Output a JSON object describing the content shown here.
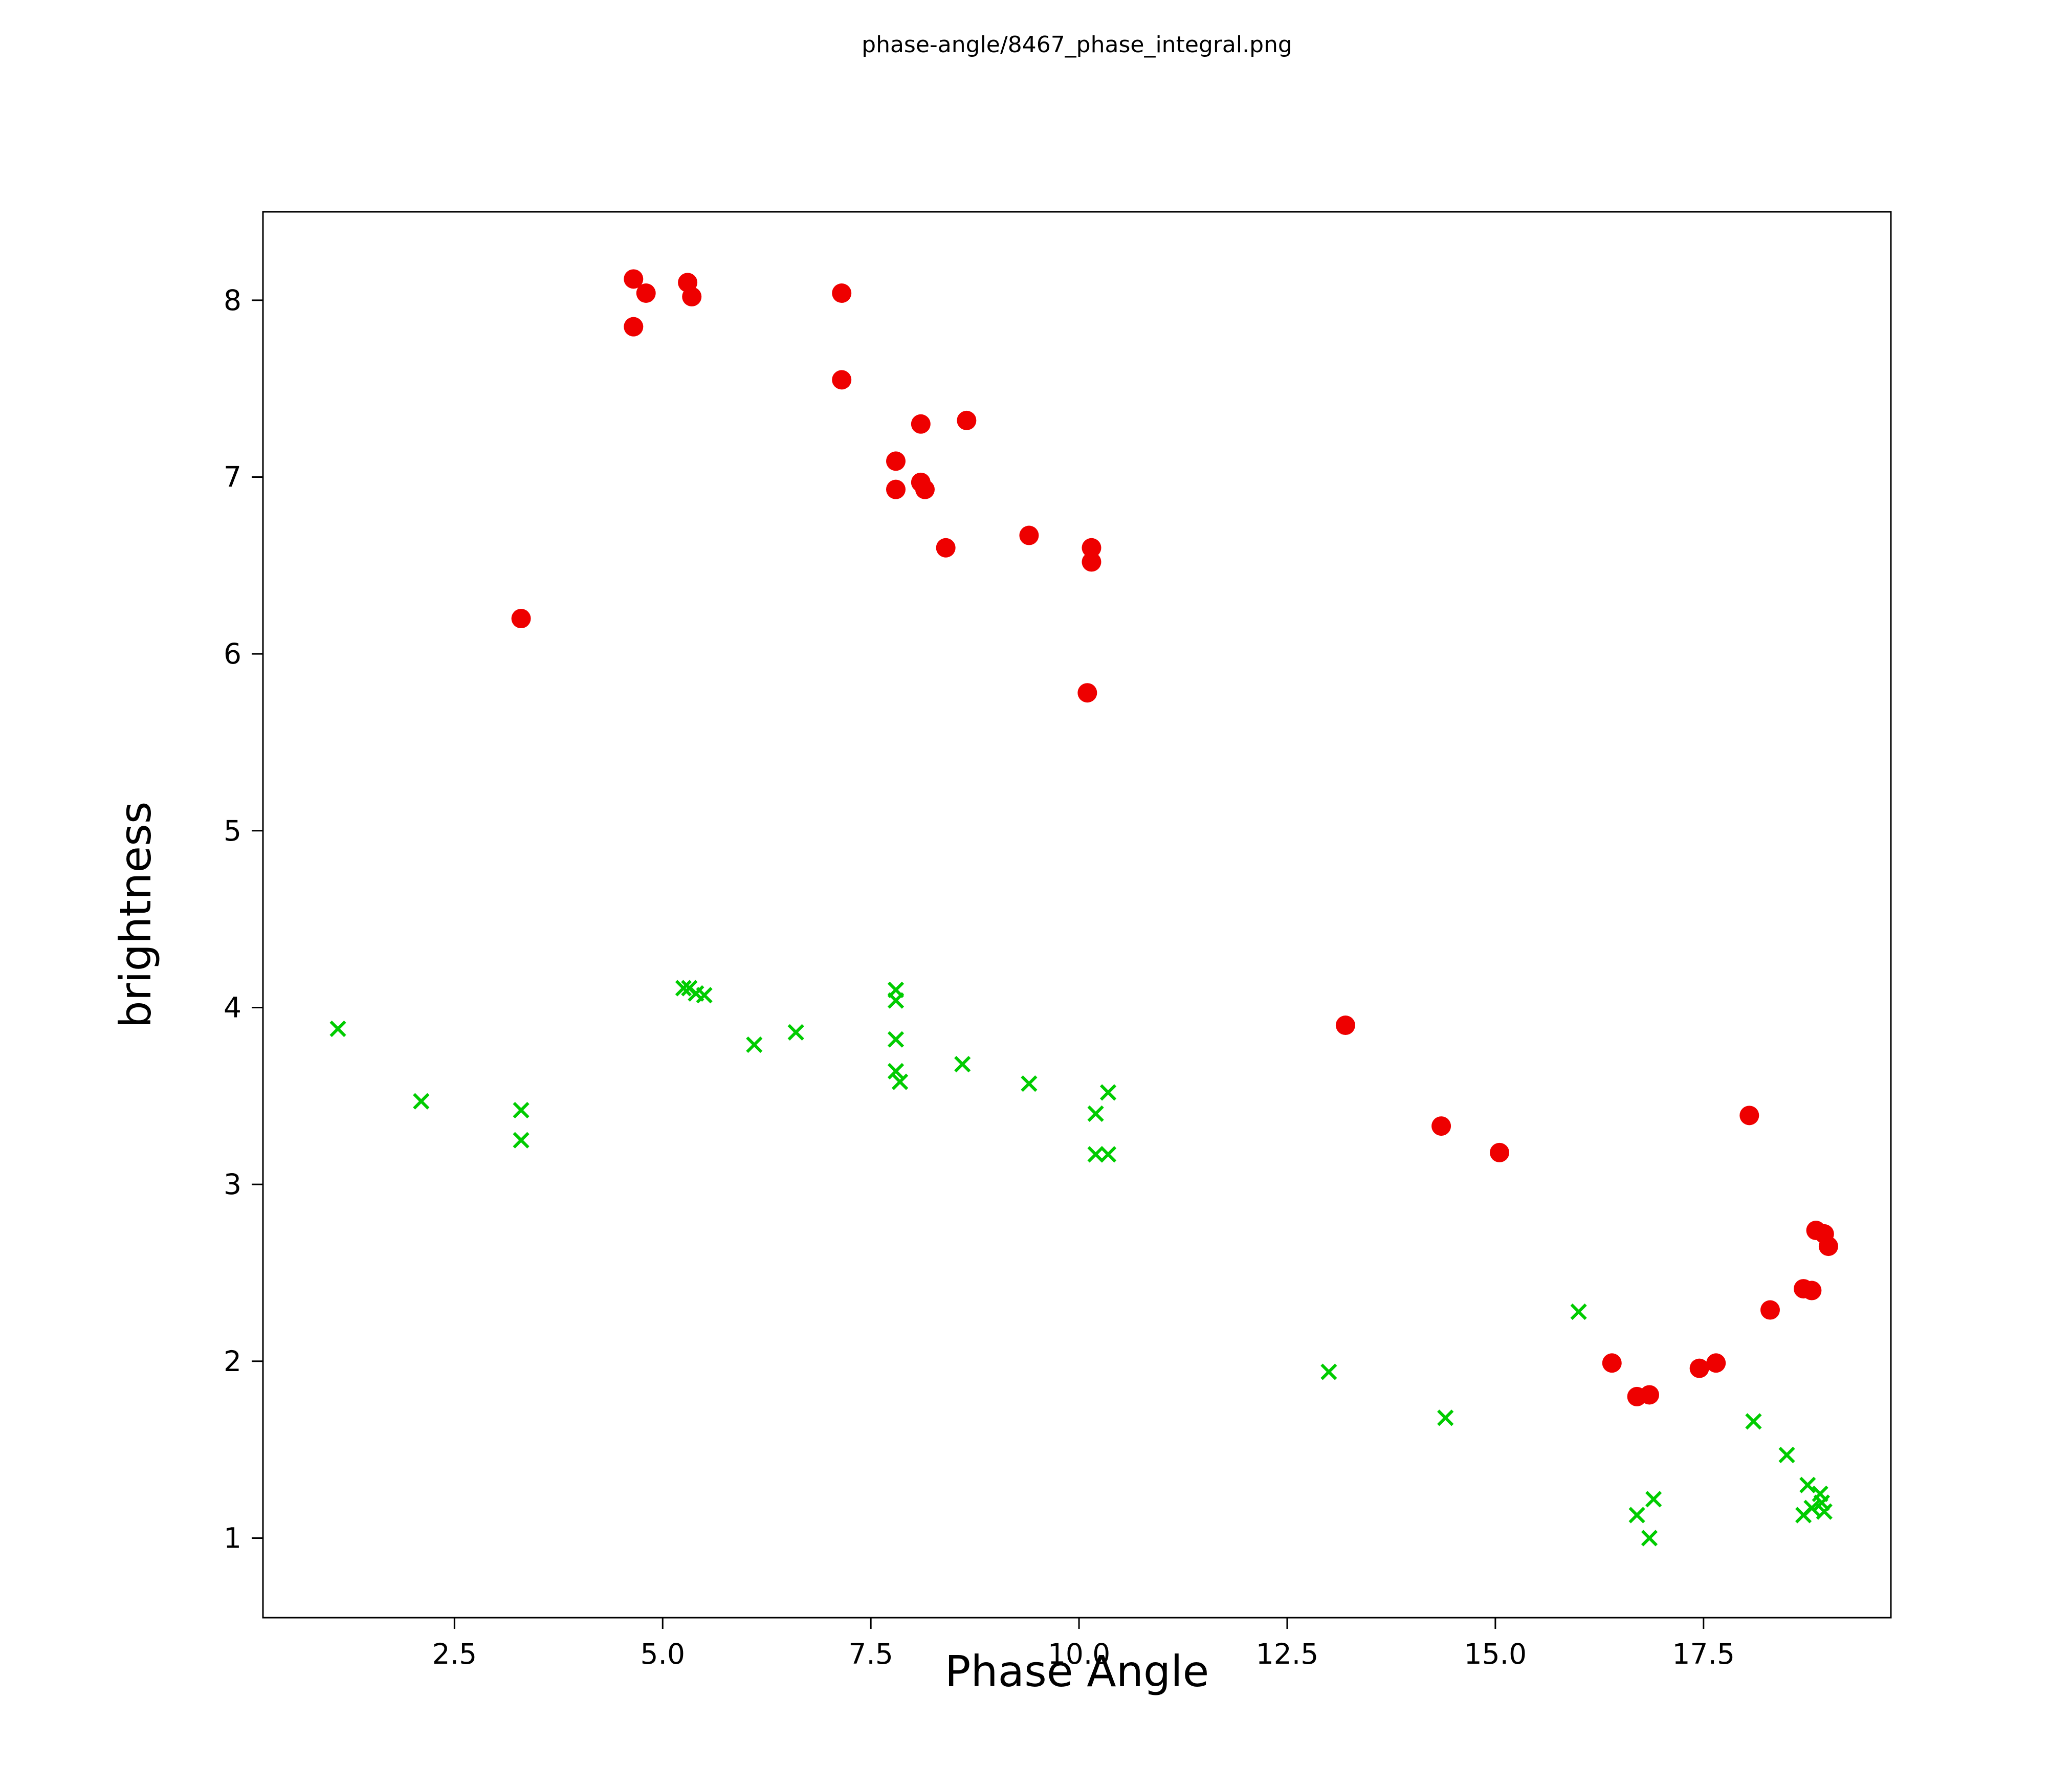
{
  "title": "phase-angle/8467_phase_integral.png",
  "chart_data": {
    "type": "scatter",
    "title": "phase-angle/8467_phase_integral.png",
    "xlabel": "Phase Angle",
    "ylabel": "brightness",
    "xlim": [
      0.2,
      19.75
    ],
    "ylim": [
      0.55,
      8.5
    ],
    "x_ticks": [
      2.5,
      5.0,
      7.5,
      10.0,
      12.5,
      15.0,
      17.5
    ],
    "x_tick_labels": [
      "2.5",
      "5.0",
      "7.5",
      "10.0",
      "12.5",
      "15.0",
      "17.5"
    ],
    "y_ticks": [
      1,
      2,
      3,
      4,
      5,
      6,
      7,
      8
    ],
    "y_tick_labels": [
      "1",
      "2",
      "3",
      "4",
      "5",
      "6",
      "7",
      "8"
    ],
    "grid": false,
    "legend": "none",
    "frame_color": "#000000",
    "series": [
      {
        "name": "red-circle-series",
        "marker": "circle",
        "color": "#ee0000",
        "points": [
          [
            3.3,
            6.2
          ],
          [
            4.65,
            8.12
          ],
          [
            4.8,
            8.04
          ],
          [
            4.65,
            7.85
          ],
          [
            5.3,
            8.1
          ],
          [
            5.35,
            8.02
          ],
          [
            7.15,
            8.04
          ],
          [
            7.15,
            7.55
          ],
          [
            7.8,
            7.09
          ],
          [
            7.8,
            6.93
          ],
          [
            8.1,
            7.3
          ],
          [
            8.1,
            6.97
          ],
          [
            8.15,
            6.93
          ],
          [
            8.4,
            6.6
          ],
          [
            8.65,
            7.32
          ],
          [
            9.4,
            6.67
          ],
          [
            10.15,
            6.6
          ],
          [
            10.15,
            6.52
          ],
          [
            10.1,
            5.78
          ],
          [
            13.2,
            3.9
          ],
          [
            14.35,
            3.33
          ],
          [
            15.05,
            3.18
          ],
          [
            16.4,
            1.99
          ],
          [
            16.7,
            1.8
          ],
          [
            16.85,
            1.81
          ],
          [
            17.45,
            1.96
          ],
          [
            17.65,
            1.99
          ],
          [
            18.05,
            3.39
          ],
          [
            18.3,
            2.29
          ],
          [
            18.7,
            2.41
          ],
          [
            18.8,
            2.4
          ],
          [
            18.85,
            2.74
          ],
          [
            18.95,
            2.72
          ],
          [
            19.0,
            2.65
          ]
        ]
      },
      {
        "name": "green-cross-series",
        "marker": "x",
        "color": "#00cc00",
        "points": [
          [
            1.1,
            3.88
          ],
          [
            2.1,
            3.47
          ],
          [
            3.3,
            3.42
          ],
          [
            3.3,
            3.25
          ],
          [
            5.25,
            4.11
          ],
          [
            5.32,
            4.11
          ],
          [
            5.4,
            4.08
          ],
          [
            5.5,
            4.07
          ],
          [
            6.1,
            3.79
          ],
          [
            6.6,
            3.86
          ],
          [
            7.8,
            4.1
          ],
          [
            7.8,
            4.04
          ],
          [
            7.8,
            3.82
          ],
          [
            7.8,
            3.64
          ],
          [
            7.85,
            3.58
          ],
          [
            8.6,
            3.68
          ],
          [
            9.4,
            3.57
          ],
          [
            10.2,
            3.4
          ],
          [
            10.35,
            3.52
          ],
          [
            10.2,
            3.17
          ],
          [
            10.35,
            3.17
          ],
          [
            13.0,
            1.94
          ],
          [
            14.4,
            1.68
          ],
          [
            16.0,
            2.28
          ],
          [
            16.7,
            1.13
          ],
          [
            16.9,
            1.22
          ],
          [
            16.85,
            1.0
          ],
          [
            18.1,
            1.66
          ],
          [
            18.5,
            1.47
          ],
          [
            18.7,
            1.13
          ],
          [
            18.75,
            1.3
          ],
          [
            18.8,
            1.17
          ],
          [
            18.9,
            1.25
          ],
          [
            18.92,
            1.2
          ],
          [
            18.95,
            1.15
          ]
        ]
      }
    ]
  }
}
